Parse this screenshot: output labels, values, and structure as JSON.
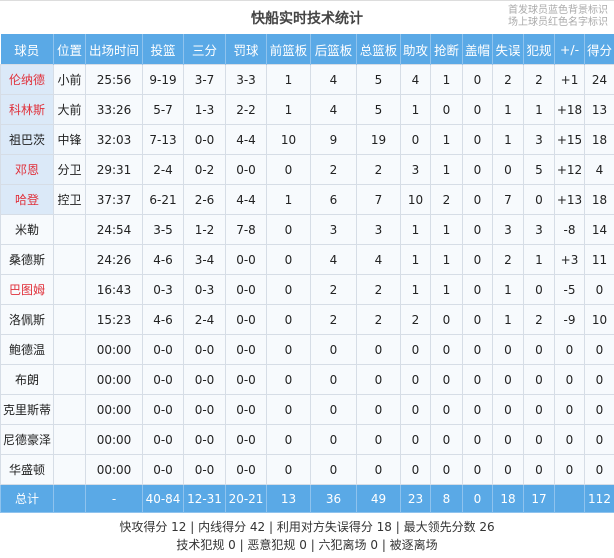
{
  "title": "快船实时技术统计",
  "legend": [
    "首发球员蓝色背景标识",
    "场上球员红色名字标识"
  ],
  "colors": {
    "header": "#5aa9e6",
    "starter_bg": "#dbe9f8",
    "on_court_name": "#e0303a"
  },
  "columns": [
    "球员",
    "位置",
    "出场时间",
    "投篮",
    "三分",
    "罚球",
    "前篮板",
    "后篮板",
    "总篮板",
    "助攻",
    "抢断",
    "盖帽",
    "失误",
    "犯规",
    "+/-",
    "得分"
  ],
  "players": [
    {
      "cells": [
        "伦纳德",
        "小前",
        "25:56",
        "9-19",
        "3-7",
        "3-3",
        "1",
        "4",
        "5",
        "4",
        "1",
        "0",
        "2",
        "2",
        "+1",
        "24"
      ],
      "starter": true,
      "on_court": true
    },
    {
      "cells": [
        "科林斯",
        "大前",
        "33:26",
        "5-7",
        "1-3",
        "2-2",
        "1",
        "4",
        "5",
        "1",
        "0",
        "0",
        "1",
        "1",
        "+18",
        "13"
      ],
      "starter": true,
      "on_court": true
    },
    {
      "cells": [
        "祖巴茨",
        "中锋",
        "32:03",
        "7-13",
        "0-0",
        "4-4",
        "10",
        "9",
        "19",
        "0",
        "1",
        "0",
        "1",
        "3",
        "+15",
        "18"
      ],
      "starter": true,
      "on_court": false
    },
    {
      "cells": [
        "邓恩",
        "分卫",
        "29:31",
        "2-4",
        "0-2",
        "0-0",
        "0",
        "2",
        "2",
        "3",
        "1",
        "0",
        "0",
        "5",
        "+12",
        "4"
      ],
      "starter": true,
      "on_court": true
    },
    {
      "cells": [
        "哈登",
        "控卫",
        "37:37",
        "6-21",
        "2-6",
        "4-4",
        "1",
        "6",
        "7",
        "10",
        "2",
        "0",
        "7",
        "0",
        "+13",
        "18"
      ],
      "starter": true,
      "on_court": true
    },
    {
      "cells": [
        "米勒",
        "",
        "24:54",
        "3-5",
        "1-2",
        "7-8",
        "0",
        "3",
        "3",
        "1",
        "1",
        "0",
        "3",
        "3",
        "-8",
        "14"
      ],
      "starter": false,
      "on_court": false
    },
    {
      "cells": [
        "桑德斯",
        "",
        "24:26",
        "4-6",
        "3-4",
        "0-0",
        "0",
        "4",
        "4",
        "1",
        "1",
        "0",
        "2",
        "1",
        "+3",
        "11"
      ],
      "starter": false,
      "on_court": false
    },
    {
      "cells": [
        "巴图姆",
        "",
        "16:43",
        "0-3",
        "0-3",
        "0-0",
        "0",
        "2",
        "2",
        "1",
        "1",
        "0",
        "1",
        "0",
        "-5",
        "0"
      ],
      "starter": false,
      "on_court": true
    },
    {
      "cells": [
        "洛佩斯",
        "",
        "15:23",
        "4-6",
        "2-4",
        "0-0",
        "0",
        "2",
        "2",
        "2",
        "0",
        "0",
        "1",
        "2",
        "-9",
        "10"
      ],
      "starter": false,
      "on_court": false
    },
    {
      "cells": [
        "鲍德温",
        "",
        "00:00",
        "0-0",
        "0-0",
        "0-0",
        "0",
        "0",
        "0",
        "0",
        "0",
        "0",
        "0",
        "0",
        "0",
        "0"
      ],
      "starter": false,
      "on_court": false
    },
    {
      "cells": [
        "布朗",
        "",
        "00:00",
        "0-0",
        "0-0",
        "0-0",
        "0",
        "0",
        "0",
        "0",
        "0",
        "0",
        "0",
        "0",
        "0",
        "0"
      ],
      "starter": false,
      "on_court": false
    },
    {
      "cells": [
        "克里斯蒂",
        "",
        "00:00",
        "0-0",
        "0-0",
        "0-0",
        "0",
        "0",
        "0",
        "0",
        "0",
        "0",
        "0",
        "0",
        "0",
        "0"
      ],
      "starter": false,
      "on_court": false
    },
    {
      "cells": [
        "尼德豪泽",
        "",
        "00:00",
        "0-0",
        "0-0",
        "0-0",
        "0",
        "0",
        "0",
        "0",
        "0",
        "0",
        "0",
        "0",
        "0",
        "0"
      ],
      "starter": false,
      "on_court": false
    },
    {
      "cells": [
        "华盛顿",
        "",
        "00:00",
        "0-0",
        "0-0",
        "0-0",
        "0",
        "0",
        "0",
        "0",
        "0",
        "0",
        "0",
        "0",
        "0",
        "0"
      ],
      "starter": false,
      "on_court": false
    }
  ],
  "total": [
    "总计",
    "",
    "-",
    "40-84",
    "12-31",
    "20-21",
    "13",
    "36",
    "49",
    "23",
    "8",
    "0",
    "18",
    "17",
    "",
    "112"
  ],
  "footer": [
    "快攻得分 12 | 内线得分 42 | 利用对方失误得分 18 | 最大领先分数 26",
    "技术犯规 0 | 恶意犯规 0 | 六犯离场 0 | 被逐离场"
  ]
}
